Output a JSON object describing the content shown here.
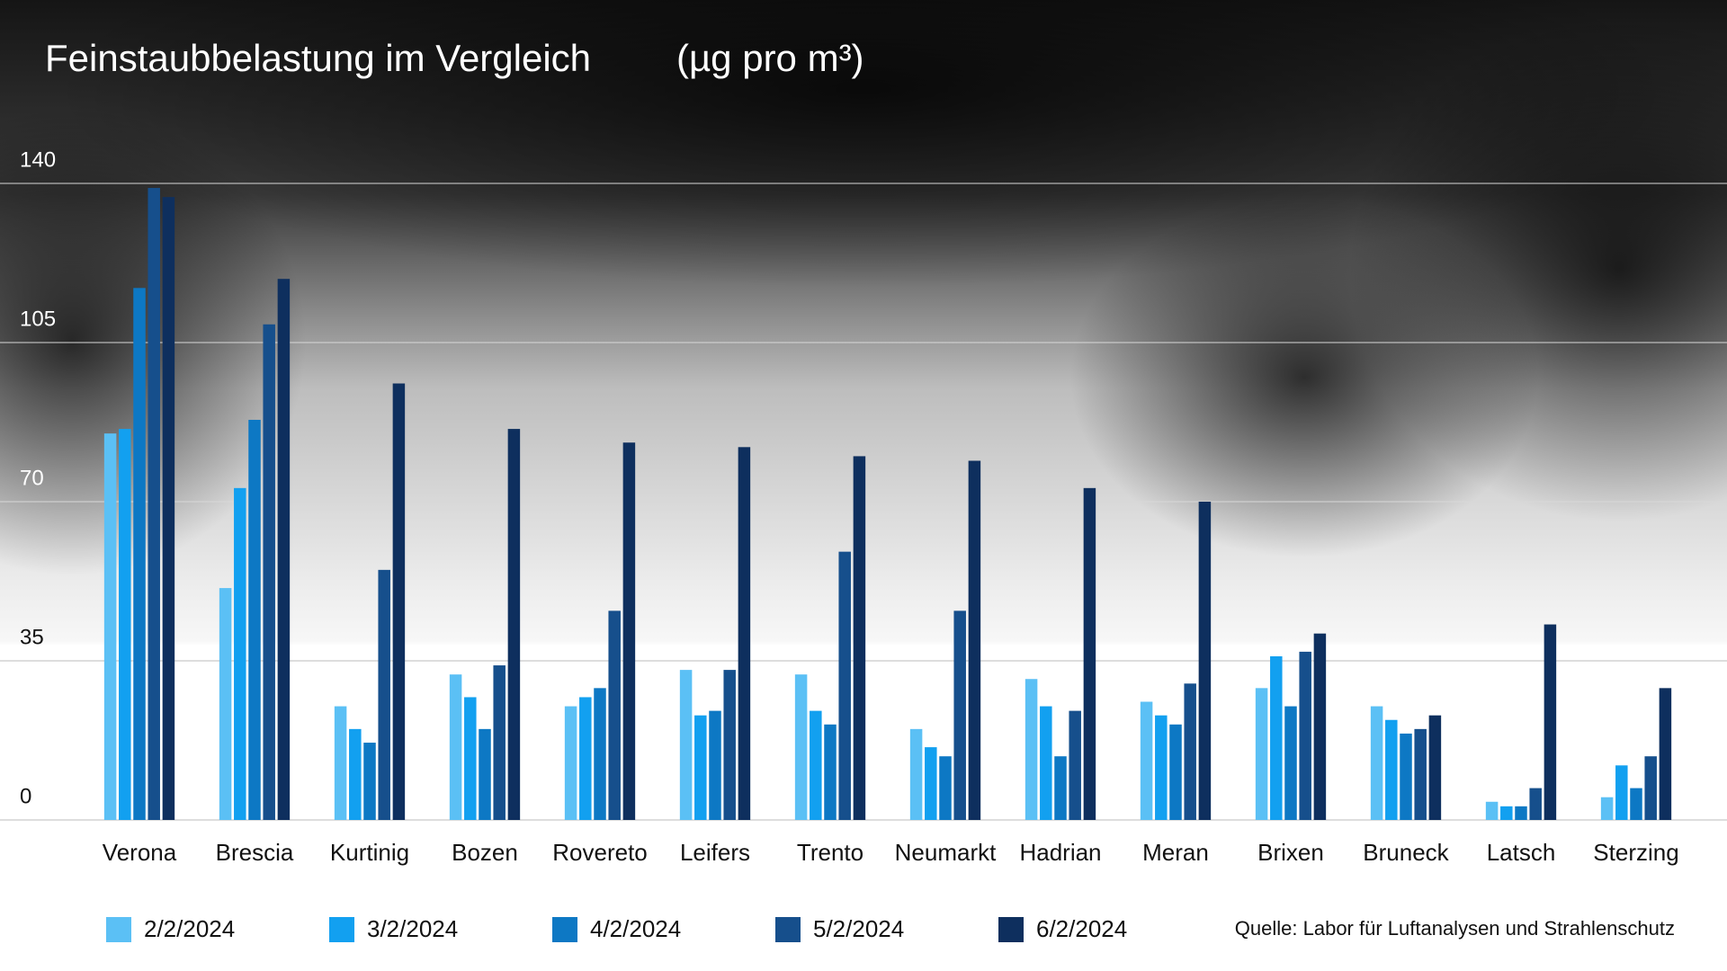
{
  "chart_data": {
    "type": "bar",
    "title": "Feinstaubbelastung im Vergleich",
    "unit": "(µg pro m³)",
    "source": "Quelle: Labor für Luftanalysen und Strahlenschutz",
    "categories": [
      "Verona",
      "Brescia",
      "Kurtinig",
      "Bozen",
      "Rovereto",
      "Leifers",
      "Trento",
      "Neumarkt",
      "Hadrian",
      "Meran",
      "Brixen",
      "Bruneck",
      "Latsch",
      "Sterzing"
    ],
    "series": [
      {
        "name": "2/2/2024",
        "color": "#5bc0f5",
        "values": [
          85,
          51,
          25,
          32,
          25,
          33,
          32,
          20,
          31,
          26,
          29,
          25,
          4,
          5
        ]
      },
      {
        "name": "3/2/2024",
        "color": "#12a0f0",
        "values": [
          86,
          73,
          20,
          27,
          27,
          23,
          24,
          16,
          25,
          23,
          36,
          22,
          3,
          12
        ]
      },
      {
        "name": "4/2/2024",
        "color": "#0d78c4",
        "values": [
          117,
          88,
          17,
          20,
          29,
          24,
          21,
          14,
          14,
          21,
          25,
          19,
          3,
          7
        ]
      },
      {
        "name": "5/2/2024",
        "color": "#164f8c",
        "values": [
          139,
          109,
          55,
          34,
          46,
          33,
          59,
          46,
          24,
          30,
          37,
          20,
          7,
          14
        ]
      },
      {
        "name": "6/2/2024",
        "color": "#0e2f5e",
        "values": [
          137,
          119,
          96,
          86,
          83,
          82,
          80,
          79,
          73,
          70,
          41,
          23,
          43,
          29
        ]
      }
    ],
    "ylim": [
      0,
      140
    ],
    "yticks": [
      0,
      35,
      70,
      105,
      140
    ],
    "grid": true
  }
}
